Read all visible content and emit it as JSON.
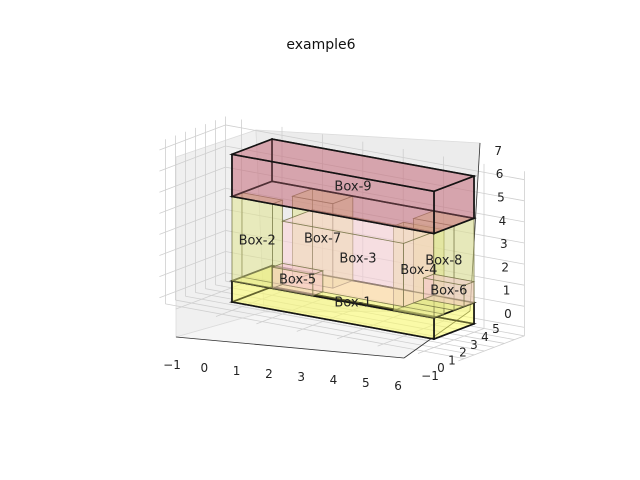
{
  "chart_data": {
    "type": "3d-boxes",
    "title": "example6",
    "x_ticks": [
      "−1",
      "0",
      "1",
      "2",
      "3",
      "4",
      "5",
      "6"
    ],
    "y_ticks": [
      "−1",
      "0",
      "1",
      "2",
      "3",
      "4",
      "5"
    ],
    "z_ticks": [
      "0",
      "1",
      "2",
      "3",
      "4",
      "5",
      "6",
      "7"
    ],
    "boxes": [
      {
        "name": "Box-1",
        "color": "#ffff66",
        "x": [
          0,
          5
        ],
        "y": [
          0,
          4
        ],
        "z": [
          0,
          1
        ]
      },
      {
        "name": "Box-2",
        "color": "#e0e68a",
        "x": [
          0,
          1
        ],
        "y": [
          0,
          1
        ],
        "z": [
          1,
          5
        ]
      },
      {
        "name": "Box-7",
        "color": "#e0e68a",
        "x": [
          1,
          2
        ],
        "y": [
          2,
          4
        ],
        "z": [
          1,
          5
        ]
      },
      {
        "name": "Box-4",
        "color": "#e0e68a",
        "x": [
          4,
          5
        ],
        "y": [
          0,
          1
        ],
        "z": [
          1,
          5
        ]
      },
      {
        "name": "Box-8",
        "color": "#e0e68a",
        "x": [
          4,
          5
        ],
        "y": [
          2,
          4
        ],
        "z": [
          1,
          5
        ]
      },
      {
        "name": "Box-3",
        "color": "#ffd0d8",
        "x": [
          1,
          4
        ],
        "y": [
          1,
          4
        ],
        "z": [
          1,
          4
        ]
      },
      {
        "name": "Box-5",
        "color": "#f4c6cc",
        "x": [
          1,
          2
        ],
        "y": [
          0,
          1
        ],
        "z": [
          1,
          2
        ]
      },
      {
        "name": "Box-6",
        "color": "#f4c6cc",
        "x": [
          4,
          5
        ],
        "y": [
          3,
          4
        ],
        "z": [
          1,
          2
        ]
      },
      {
        "name": "Box-9",
        "color": "#c46a78",
        "x": [
          0,
          5
        ],
        "y": [
          0,
          4
        ],
        "z": [
          5,
          7
        ]
      }
    ]
  }
}
